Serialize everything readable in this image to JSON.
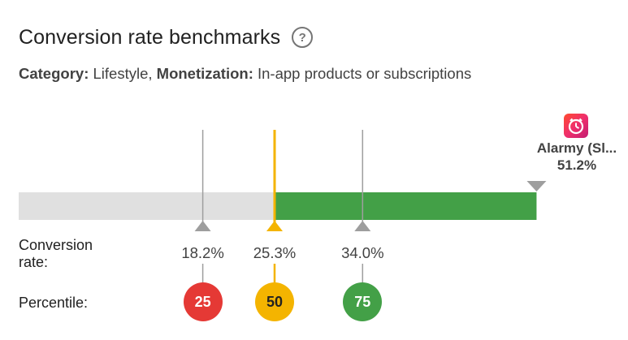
{
  "header": {
    "title": "Conversion rate benchmarks",
    "help_icon": "help-circle-icon"
  },
  "subtitle": {
    "category_label": "Category:",
    "category_value": " Lifestyle, ",
    "monetization_label": "Monetization:",
    "monetization_value": " In-app products or subscriptions"
  },
  "benchmark": {
    "scale_min": 0,
    "scale_max": 60,
    "current_app": {
      "name": "Alarmy (Sl...",
      "value_label": "51.2%",
      "value": 51.2,
      "icon": "alarm-clock-app-icon"
    },
    "row_labels": {
      "conversion_rate": "Conversion rate:",
      "percentile": "Percentile:"
    },
    "markers": [
      {
        "value": 18.2,
        "rate_label": "18.2%",
        "percentile": "25",
        "color": "#e53935",
        "line_color": "#9e9e9e",
        "text_color": "#ffffff"
      },
      {
        "value": 25.3,
        "rate_label": "25.3%",
        "percentile": "50",
        "color": "#f4b400",
        "line_color": "#f4b400",
        "text_color": "#212121"
      },
      {
        "value": 34.0,
        "rate_label": "34.0%",
        "percentile": "75",
        "color": "#43a047",
        "line_color": "#9e9e9e",
        "text_color": "#ffffff"
      }
    ],
    "colors": {
      "track": "#e0e0e0",
      "fill": "#43a047",
      "median": "#f4b400",
      "marker_line": "#9e9e9e"
    }
  }
}
